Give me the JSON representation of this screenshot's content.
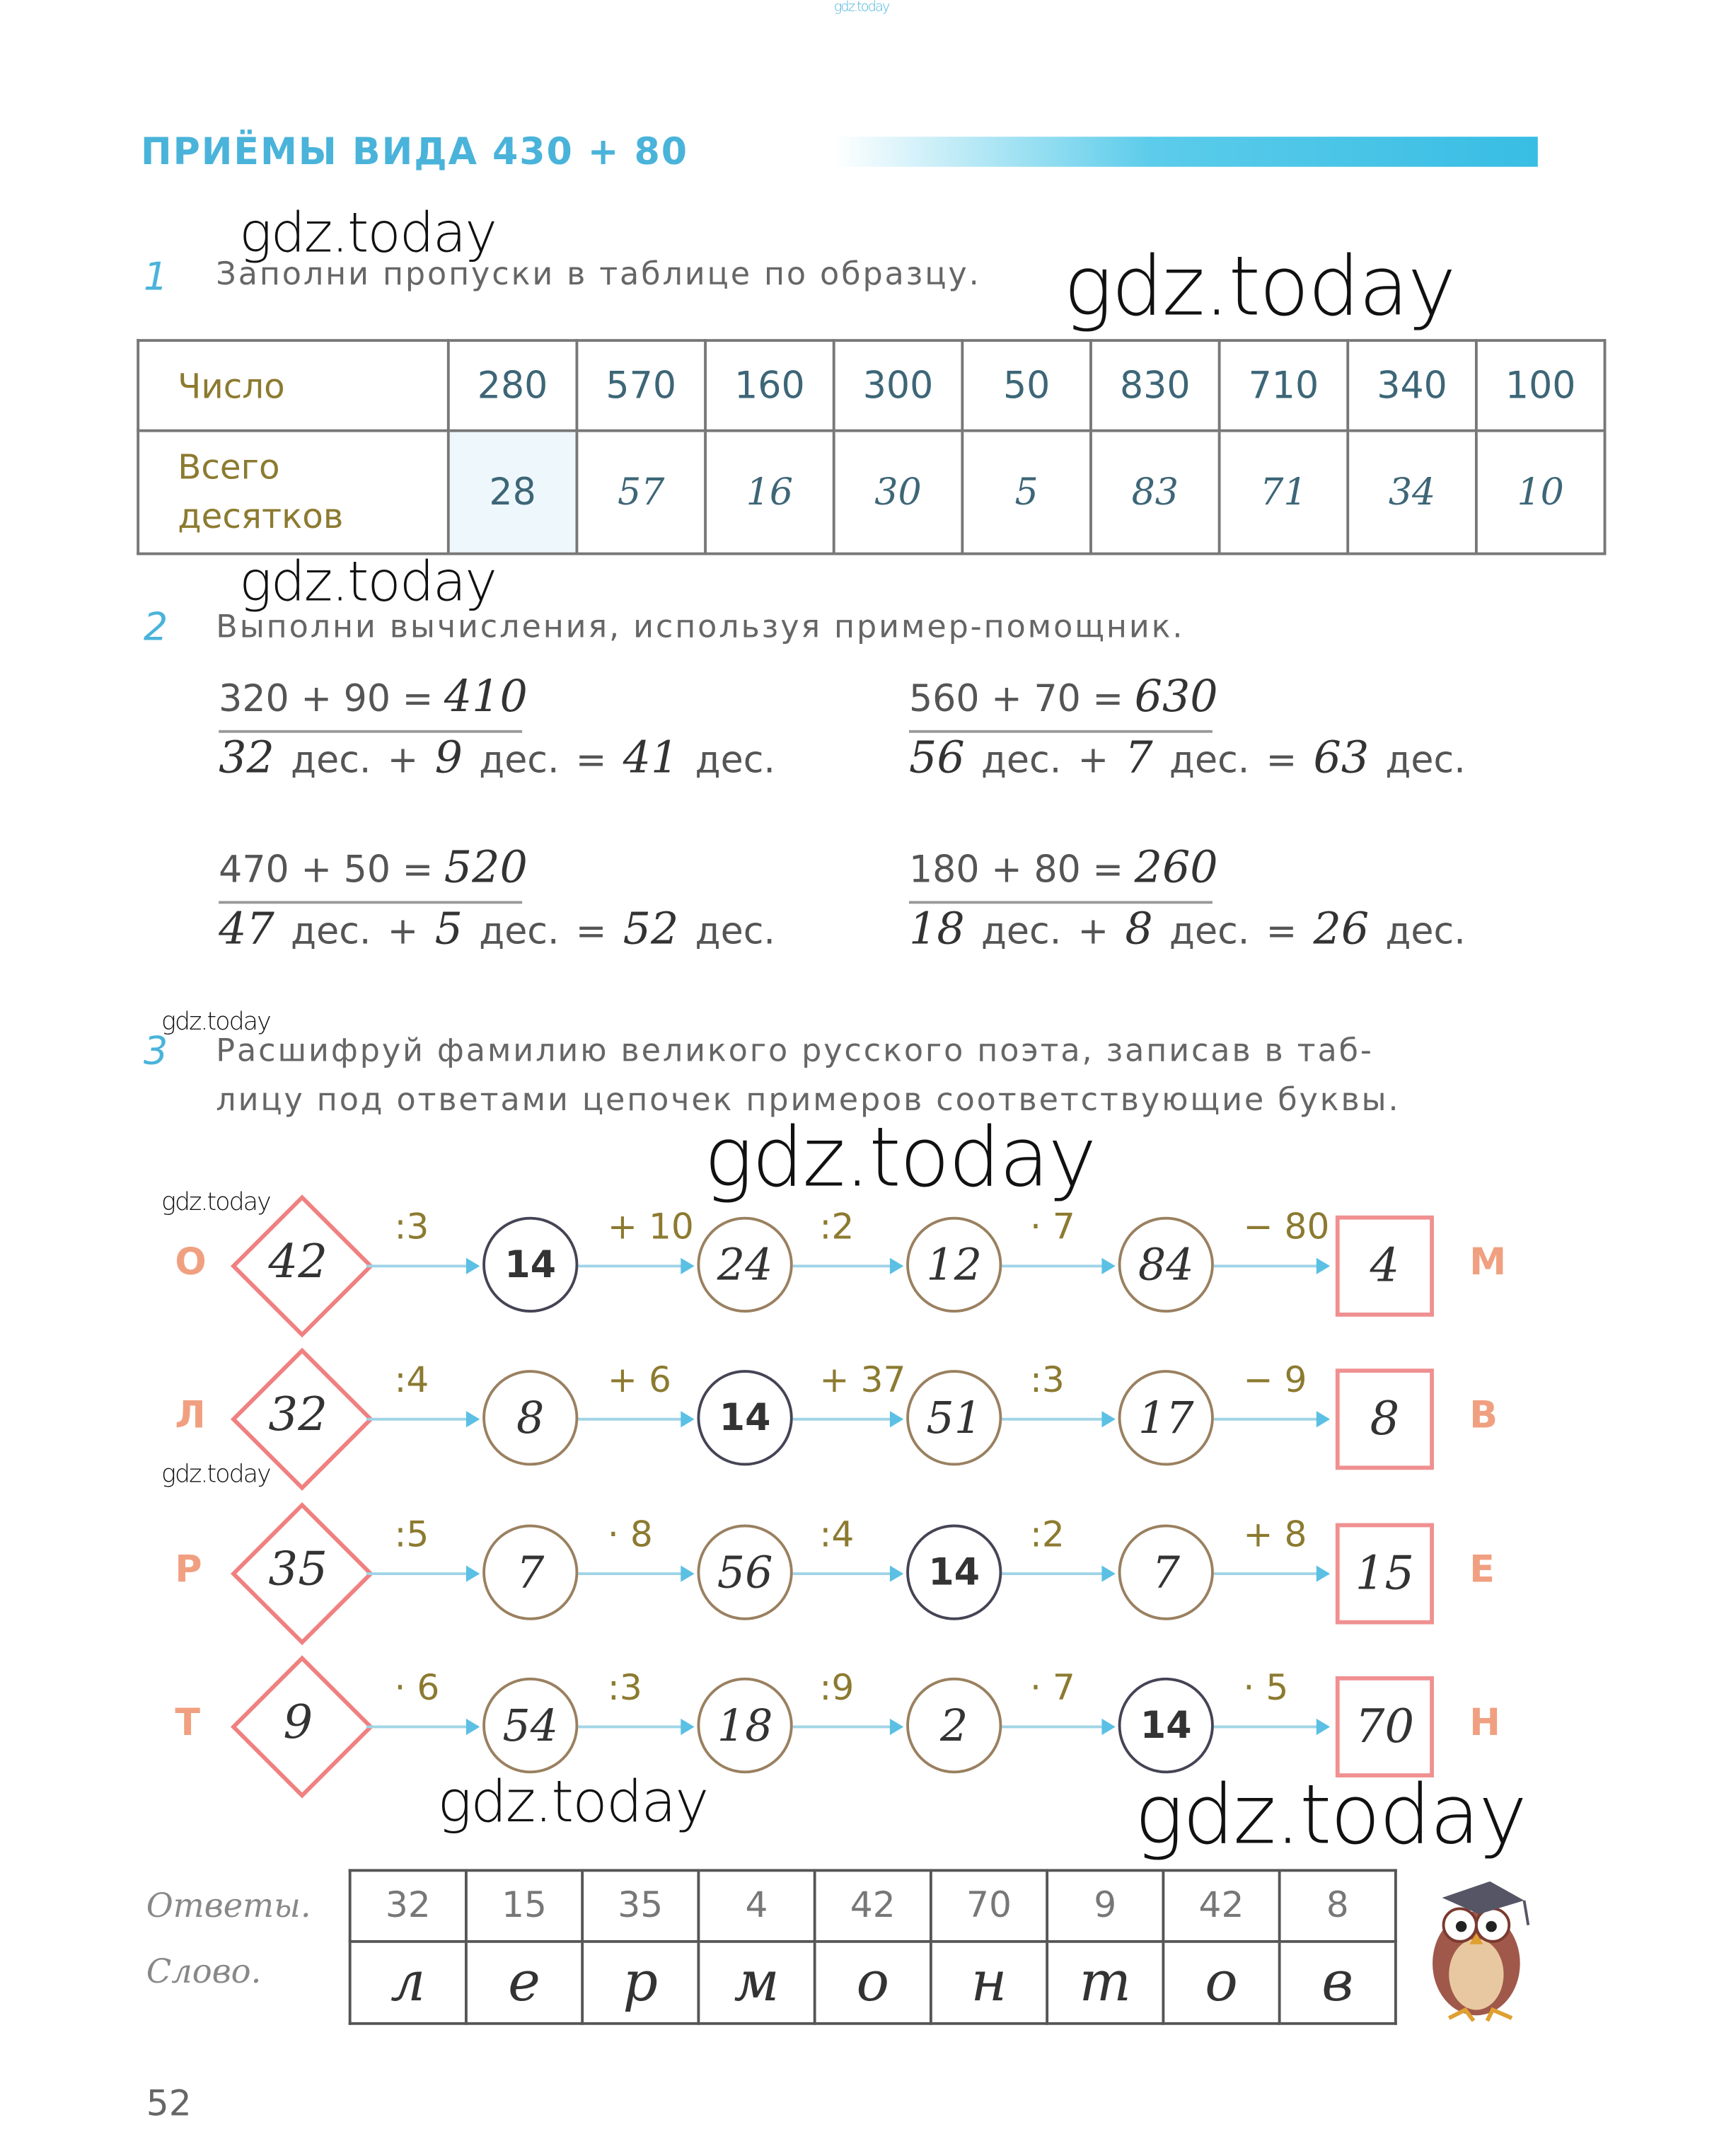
{
  "header_watermark": "gdz.today",
  "title": "ПРИЁМЫ  ВИДА 430 + 80",
  "watermarks": [
    "gdz.today",
    "gdz.today",
    "gdz.today",
    "gdz.today",
    "gdz.today",
    "gdz.today",
    "gdz.today",
    "gdz.today",
    "gdz.today"
  ],
  "task1": {
    "number": "1",
    "text": "Заполни  пропуски  в  таблице  по  образцу.",
    "row_labels": [
      "Число",
      "Всего десятков"
    ],
    "numbers": [
      "280",
      "570",
      "160",
      "300",
      "50",
      "830",
      "710",
      "340",
      "100"
    ],
    "tens": [
      "28",
      "57",
      "16",
      "30",
      "5",
      "83",
      "71",
      "34",
      "10"
    ]
  },
  "task2": {
    "number": "2",
    "text": "Выполни  вычисления,  используя  пример-помощник.",
    "examples": [
      {
        "expr": "320 + 90 =",
        "answer": "410",
        "a": "32",
        "b": "9",
        "sum": "41",
        "sign": "+"
      },
      {
        "expr": "560 + 70 =",
        "answer": "630",
        "a": "56",
        "b": "7",
        "sum": "63",
        "sign": "+"
      },
      {
        "expr": "470 + 50 =",
        "answer": "520",
        "a": "47",
        "b": "5",
        "sum": "52",
        "sign": "+"
      },
      {
        "expr": "180 + 80 =",
        "answer": "260",
        "a": "18",
        "b": "8",
        "sum": "26",
        "sign": "+"
      }
    ],
    "unit": "дес.",
    "eq": "="
  },
  "task3": {
    "number": "3",
    "text_line1": "Расшифруй  фамилию  великого  русского  поэта,  записав  в  таб-",
    "text_line2": "лицу  под  ответами  цепочек  примеров  соответствующие  буквы.",
    "chains": [
      {
        "letter": "О",
        "start": "42",
        "ops": [
          ":3",
          "+ 10",
          ":2",
          "· 7",
          "− 80"
        ],
        "values": [
          "14",
          "24",
          "12",
          "84"
        ],
        "result": "4",
        "result_letter": "М",
        "printed_index": 0
      },
      {
        "letter": "Л",
        "start": "32",
        "ops": [
          ":4",
          "+ 6",
          "+ 37",
          ":3",
          "− 9"
        ],
        "values": [
          "8",
          "14",
          "51",
          "17"
        ],
        "result": "8",
        "result_letter": "В",
        "printed_index": 1
      },
      {
        "letter": "Р",
        "start": "35",
        "ops": [
          ":5",
          "· 8",
          ":4",
          ":2",
          "+ 8"
        ],
        "values": [
          "7",
          "56",
          "14",
          "7"
        ],
        "result": "15",
        "result_letter": "Е",
        "printed_index": 2
      },
      {
        "letter": "Т",
        "start": "9",
        "ops": [
          "· 6",
          ":3",
          ":9",
          "· 7",
          "· 5"
        ],
        "values": [
          "54",
          "18",
          "2",
          "14"
        ],
        "result": "70",
        "result_letter": "Н",
        "printed_index": 3
      }
    ],
    "answers_label": "Ответы.",
    "word_label": "Слово.",
    "answers": [
      "32",
      "15",
      "35",
      "4",
      "42",
      "70",
      "9",
      "42",
      "8"
    ],
    "word": [
      "л",
      "е",
      "р",
      "м",
      "о",
      "н",
      "т",
      "о",
      "в"
    ]
  },
  "page_number": "52",
  "colors": {
    "title": "#4ab3da",
    "diamond": "#f08080",
    "letters": "#f0a080",
    "arrow": "#5bc0e4"
  }
}
